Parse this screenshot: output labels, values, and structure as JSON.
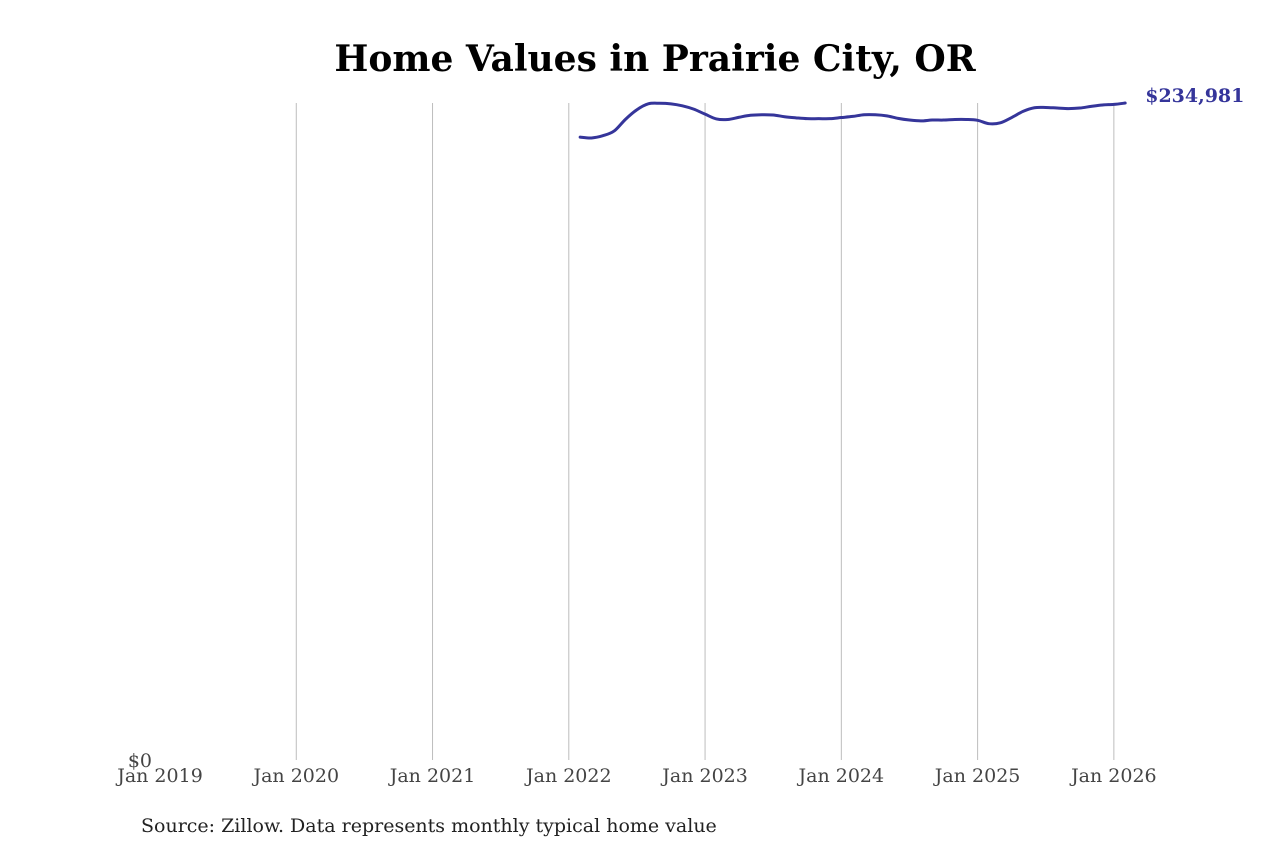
{
  "chart_data": {
    "type": "line",
    "title": "Home Values in Prairie City, OR",
    "xlabel": "",
    "ylabel": "",
    "x_ticks": [
      "Jan 2019",
      "Jan 2020",
      "Jan 2021",
      "Jan 2022",
      "Jan 2023",
      "Jan 2024",
      "Jan 2025",
      "Jan 2026"
    ],
    "y_ticks": [
      "$0"
    ],
    "ylim": [
      0,
      235000
    ],
    "xlim": [
      "2019-01",
      "2026-07"
    ],
    "grid": "vertical",
    "line_color": "#35359a",
    "end_label": "$234,981",
    "series": [
      {
        "x": [
          "2022-02",
          "2022-03",
          "2022-04",
          "2022-05",
          "2022-06",
          "2022-07",
          "2022-08",
          "2022-09",
          "2022-10",
          "2022-11",
          "2022-12",
          "2023-01",
          "2023-02",
          "2023-03",
          "2023-04",
          "2023-05",
          "2023-06",
          "2023-07",
          "2023-08",
          "2023-09",
          "2023-10",
          "2023-11",
          "2023-12",
          "2024-01",
          "2024-02",
          "2024-03",
          "2024-04",
          "2024-05",
          "2024-06",
          "2024-07",
          "2024-08",
          "2024-09",
          "2024-10",
          "2024-11",
          "2024-12",
          "2025-01",
          "2025-02",
          "2025-03",
          "2025-04",
          "2025-05",
          "2025-06",
          "2025-07",
          "2025-08",
          "2025-09",
          "2025-10",
          "2025-11",
          "2025-12",
          "2026-01",
          "2026-02"
        ],
        "y": [
          222800,
          222500,
          223300,
          225000,
          229200,
          232600,
          234700,
          234900,
          234700,
          234000,
          232800,
          231000,
          229300,
          229100,
          229900,
          230600,
          230800,
          230700,
          230100,
          229700,
          229400,
          229400,
          229400,
          229800,
          230200,
          230800,
          230800,
          230400,
          229500,
          228900,
          228600,
          228900,
          228900,
          229100,
          229100,
          228800,
          227600,
          227900,
          229800,
          232000,
          233300,
          233400,
          233200,
          233000,
          233200,
          233800,
          234300,
          234500,
          234981
        ]
      }
    ]
  },
  "source": "Source: Zillow. Data represents monthly typical home value"
}
